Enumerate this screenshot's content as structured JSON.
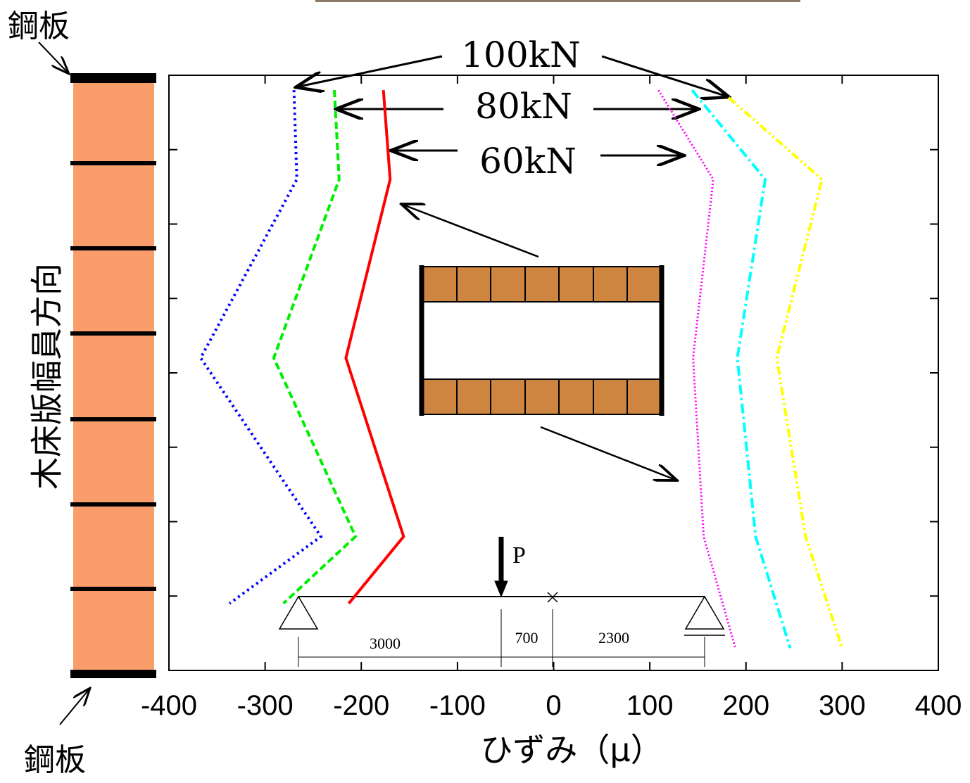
{
  "chart_data": {
    "type": "line",
    "xlabel": "ひずみ（μ）",
    "ylabel": "木床版幅員方向",
    "xlim": [
      -400,
      400
    ],
    "xticks": [
      -400,
      -300,
      -200,
      -100,
      0,
      100,
      200,
      300,
      400
    ],
    "ylim": [
      0,
      8
    ],
    "yticks": [
      1,
      2,
      3,
      4,
      5,
      6,
      7
    ],
    "annotations": {
      "top_plate": "鋼板",
      "bottom_plate": "鋼板",
      "load_100": "100kN",
      "load_80": "80kN",
      "load_60": "60kN",
      "load_p": "P",
      "span_left": "3000",
      "span_mid": "700",
      "span_right": "2300"
    },
    "series": [
      {
        "color": "#0000ff",
        "style": "dotted",
        "values": [
          -270,
          -267,
          -367,
          -242,
          -337
        ],
        "y": [
          7.8,
          6.6,
          4.2,
          1.8,
          0.9
        ]
      },
      {
        "color": "#00ee00",
        "style": "dashed",
        "values": [
          -228,
          -223,
          -291,
          -206,
          -281
        ],
        "y": [
          7.8,
          6.6,
          4.2,
          1.8,
          0.9
        ]
      },
      {
        "color": "#ff0000",
        "style": "solid",
        "values": [
          -177,
          -170,
          -216,
          -156,
          -213
        ],
        "y": [
          7.8,
          6.6,
          4.2,
          1.8,
          0.9
        ]
      },
      {
        "color": "#ff00ff",
        "style": "fine-dotted",
        "values": [
          109,
          166,
          145,
          156,
          189
        ],
        "y": [
          7.8,
          6.6,
          4.2,
          1.8,
          0.3
        ]
      },
      {
        "color": "#00ffff",
        "style": "dash-dot",
        "values": [
          144,
          220,
          191,
          210,
          246
        ],
        "y": [
          7.8,
          6.6,
          4.2,
          1.8,
          0.3
        ]
      },
      {
        "color": "#ffff00",
        "style": "dash-dot-dot",
        "values": [
          182,
          279,
          232,
          262,
          300
        ],
        "y": [
          7.7,
          6.6,
          4.2,
          1.8,
          0.3
        ]
      }
    ]
  }
}
